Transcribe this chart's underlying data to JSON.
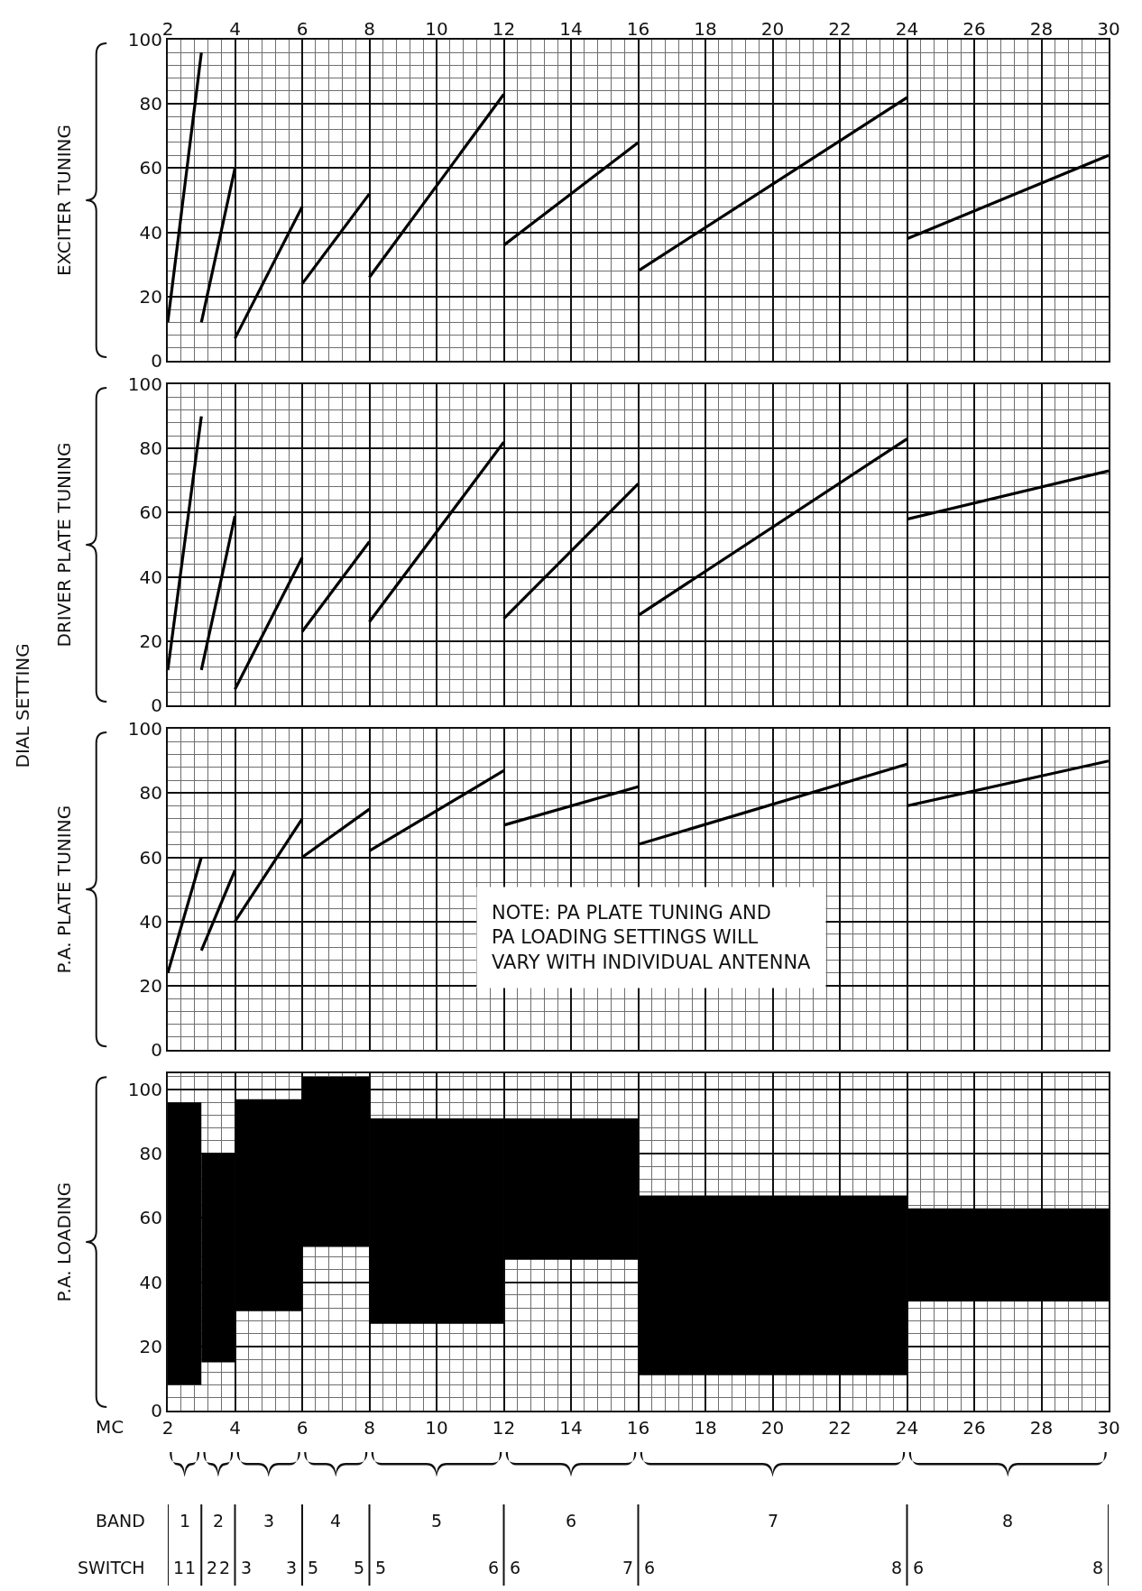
{
  "chart_data": [
    {
      "type": "line",
      "ylabel": "EXCITER TUNING",
      "xlim": [
        2,
        30
      ],
      "xticks": [
        2,
        4,
        6,
        8,
        10,
        12,
        14,
        16,
        18,
        20,
        22,
        24,
        26,
        28,
        30
      ],
      "x2lim": [
        2,
        30
      ],
      "x2ticks": [
        2,
        4,
        6,
        8,
        10,
        12,
        14,
        16,
        18,
        20,
        22,
        24,
        26,
        28,
        30
      ],
      "ylim": [
        0,
        100
      ],
      "yticks": [
        0,
        20,
        40,
        60,
        80,
        100
      ],
      "tick_labels": "y",
      "grid": true,
      "line_style": "solid",
      "series": [
        {
          "x": [
            2,
            3
          ],
          "values": [
            12,
            96
          ],
          "color": "#000000"
        },
        {
          "x": [
            3,
            4
          ],
          "values": [
            12,
            60
          ],
          "color": "#000000"
        },
        {
          "x": [
            4,
            6
          ],
          "values": [
            7,
            48
          ],
          "color": "#000000"
        },
        {
          "x": [
            6,
            8
          ],
          "values": [
            24,
            52
          ],
          "color": "#000000"
        },
        {
          "x": [
            8,
            12
          ],
          "values": [
            26,
            83
          ],
          "color": "#000000"
        },
        {
          "x": [
            12,
            16
          ],
          "values": [
            36,
            68
          ],
          "color": "#000000"
        },
        {
          "x": [
            16,
            24
          ],
          "values": [
            28,
            82
          ],
          "color": "#000000"
        },
        {
          "x": [
            24,
            30
          ],
          "values": [
            38,
            64
          ],
          "color": "#000000"
        }
      ]
    },
    {
      "type": "line",
      "ylabel": "DRIVER PLATE TUNING",
      "annotations": [
        "DIAL SETTING"
      ],
      "xlim": [
        2,
        30
      ],
      "xticks": [
        2,
        4,
        6,
        8,
        10,
        12,
        14,
        16,
        18,
        20,
        22,
        24,
        26,
        28,
        30
      ],
      "ylim": [
        0,
        100
      ],
      "yticks": [
        0,
        20,
        40,
        60,
        80,
        100
      ],
      "tick_labels": "y",
      "grid": true,
      "line_style": "solid",
      "series": [
        {
          "x": [
            2,
            3
          ],
          "values": [
            11,
            90
          ],
          "color": "#000000"
        },
        {
          "x": [
            3,
            4
          ],
          "values": [
            11,
            59
          ],
          "color": "#000000"
        },
        {
          "x": [
            4,
            6
          ],
          "values": [
            5,
            46
          ],
          "color": "#000000"
        },
        {
          "x": [
            6,
            8
          ],
          "values": [
            23,
            51
          ],
          "color": "#000000"
        },
        {
          "x": [
            8,
            12
          ],
          "values": [
            26,
            82
          ],
          "color": "#000000"
        },
        {
          "x": [
            12,
            16
          ],
          "values": [
            27,
            69
          ],
          "color": "#000000"
        },
        {
          "x": [
            16,
            24
          ],
          "values": [
            28,
            83
          ],
          "color": "#000000"
        },
        {
          "x": [
            24,
            30
          ],
          "values": [
            58,
            73
          ],
          "color": "#000000"
        }
      ]
    },
    {
      "type": "line",
      "ylabel": "P.A. PLATE TUNING",
      "annotations": [
        "NOTE: PA PLATE TUNING AND\nPA LOADING SETTINGS WILL\nVARY WITH INDIVIDUAL ANTENNA"
      ],
      "xlim": [
        2,
        30
      ],
      "xticks": [
        2,
        4,
        6,
        8,
        10,
        12,
        14,
        16,
        18,
        20,
        22,
        24,
        26,
        28,
        30
      ],
      "ylim": [
        0,
        100
      ],
      "yticks": [
        0,
        20,
        40,
        60,
        80,
        100
      ],
      "tick_labels": "y",
      "grid": true,
      "line_style": "solid",
      "series": [
        {
          "x": [
            2,
            3
          ],
          "values": [
            24,
            60
          ],
          "color": "#000000"
        },
        {
          "x": [
            3,
            4
          ],
          "values": [
            31,
            56
          ],
          "color": "#000000"
        },
        {
          "x": [
            4,
            6
          ],
          "values": [
            40,
            72
          ],
          "color": "#000000"
        },
        {
          "x": [
            6,
            8
          ],
          "values": [
            60,
            75
          ],
          "color": "#000000"
        },
        {
          "x": [
            8,
            12
          ],
          "values": [
            62,
            87
          ],
          "color": "#000000"
        },
        {
          "x": [
            12,
            16
          ],
          "values": [
            70,
            82
          ],
          "color": "#000000"
        },
        {
          "x": [
            16,
            24
          ],
          "values": [
            64,
            89
          ],
          "color": "#000000"
        },
        {
          "x": [
            24,
            30
          ],
          "values": [
            76,
            90
          ],
          "color": "#000000"
        }
      ]
    },
    {
      "type": "bar",
      "xlabel": "MC",
      "ylabel": "P.A. LOADING",
      "x": [
        2.5,
        3.5,
        5,
        7,
        10,
        14,
        20,
        27
      ],
      "base": [
        8,
        15,
        31,
        51,
        27,
        47,
        11,
        34
      ],
      "values": [
        88,
        65,
        66,
        53,
        64,
        44,
        56,
        29
      ],
      "color": "#000000",
      "xlim": [
        2,
        30
      ],
      "xticks": [
        2,
        4,
        6,
        8,
        10,
        12,
        14,
        16,
        18,
        20,
        22,
        24,
        26,
        28,
        30
      ],
      "ylim": [
        0,
        105
      ],
      "yticks": [
        0,
        20,
        40,
        60,
        80,
        100
      ],
      "grid": true,
      "annotations": [
        "BAND",
        "1",
        "2",
        "3",
        "4",
        "5",
        "6",
        "7",
        "8",
        "SWITCH",
        "1",
        "1",
        "2",
        "2",
        "3",
        "3",
        "5",
        "5",
        "5",
        "6",
        "6",
        "7",
        "6",
        "8",
        "6",
        "8"
      ]
    }
  ]
}
